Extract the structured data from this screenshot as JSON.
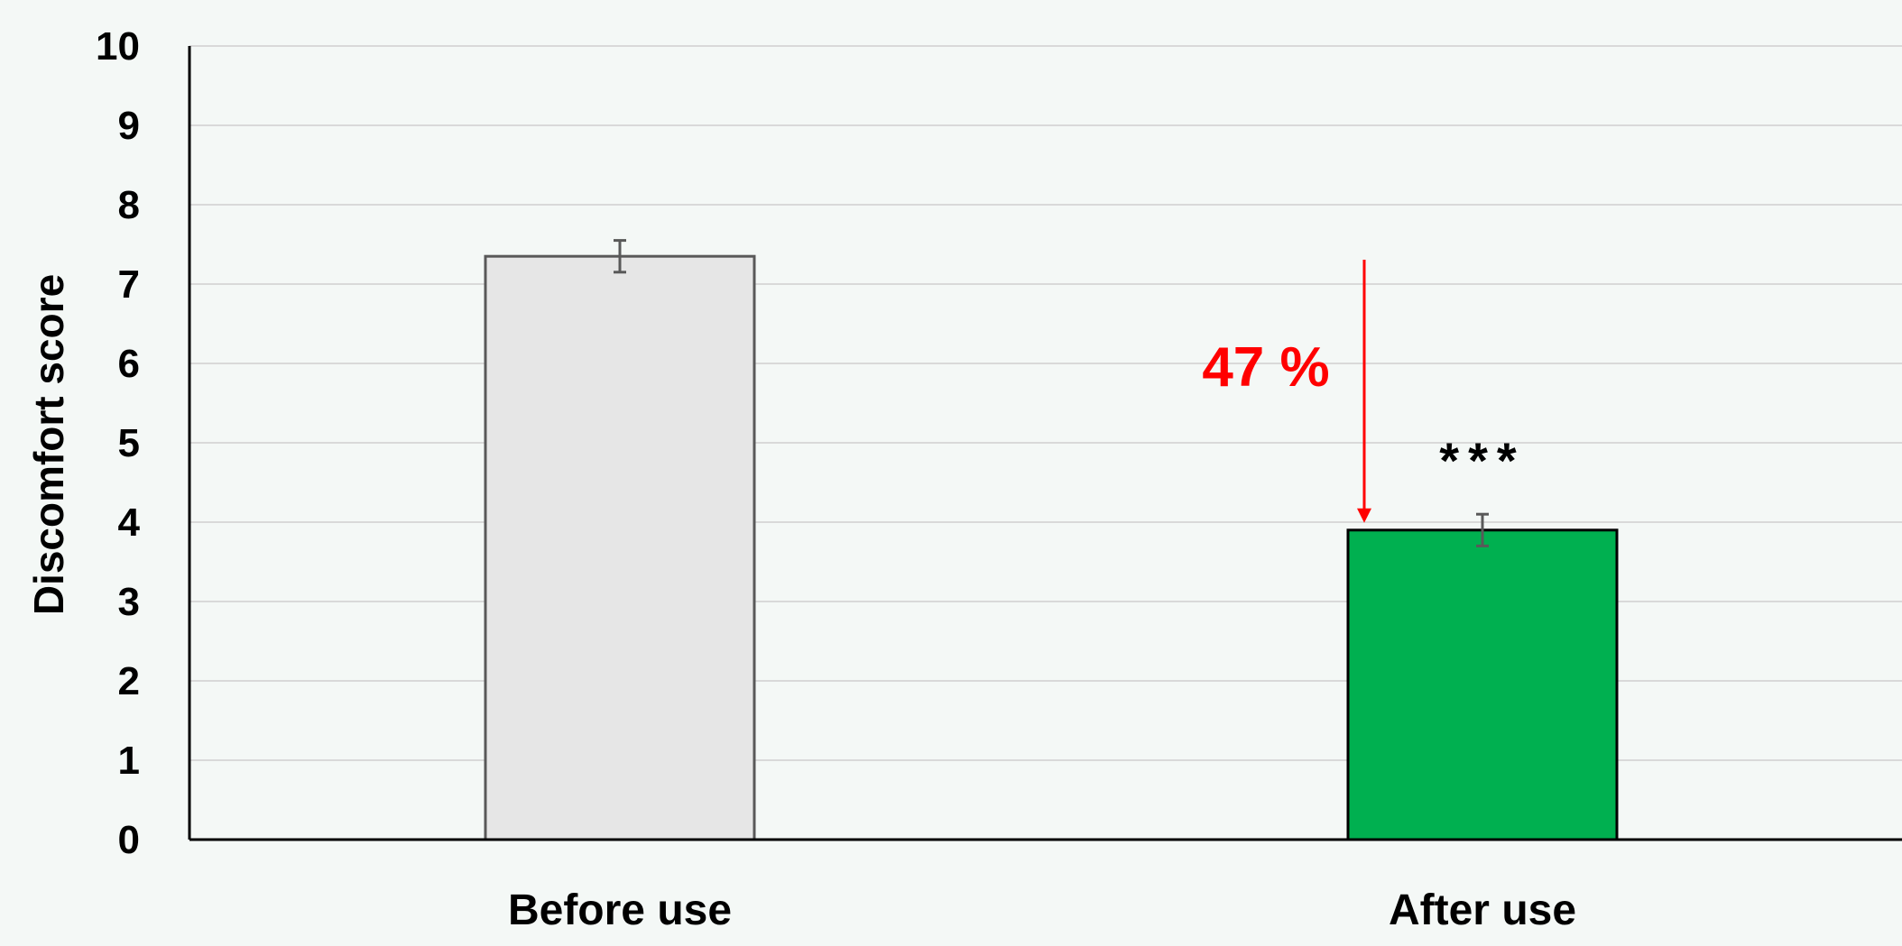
{
  "colors": {
    "background": "#f4f8f6",
    "gridline": "#d9d9d9",
    "axis": "#000000",
    "annotation": "#ff0000"
  },
  "chart_data": {
    "type": "bar",
    "title": "",
    "xlabel": "",
    "ylabel": "Discomfort score",
    "ylim": [
      0,
      10
    ],
    "yticks": [
      0,
      1,
      2,
      3,
      4,
      5,
      6,
      7,
      8,
      9,
      10
    ],
    "grid": true,
    "categories": [
      "Before use",
      "After use"
    ],
    "values": [
      7.35,
      3.9
    ],
    "error": [
      0.2,
      0.2
    ],
    "bar_colors": [
      "#e6e6e6",
      "#00b050"
    ],
    "bar_edge_colors": [
      "#595959",
      "#000000"
    ],
    "annotations": {
      "reduction_label": "47 %",
      "significance_label": "***"
    }
  }
}
